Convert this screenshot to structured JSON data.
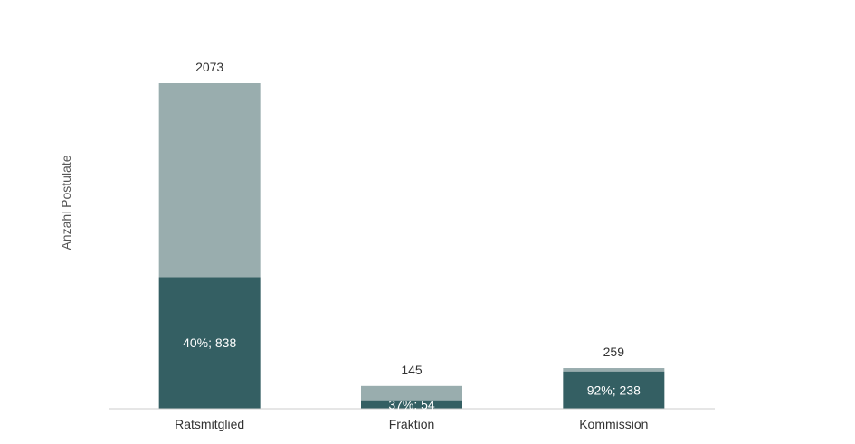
{
  "chart_data": {
    "type": "bar",
    "stacked": true,
    "title": "",
    "xlabel": "",
    "ylabel": "Anzahl Postulate",
    "categories": [
      "Ratsmitglied",
      "Fraktion",
      "Kommission"
    ],
    "totals": [
      2073,
      145,
      259
    ],
    "series": [
      {
        "values": [
          838,
          54,
          238
        ],
        "percent_labels": [
          "40%; 838",
          "37%; 54",
          "92%; 238"
        ],
        "color": "#345f63"
      },
      {
        "values": [
          1235,
          91,
          21
        ],
        "color": "#99adae"
      }
    ],
    "ylim": [
      0,
      2073
    ],
    "grid": false,
    "legend": "none",
    "baseline_color": "#cccccc"
  }
}
